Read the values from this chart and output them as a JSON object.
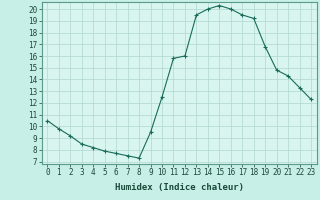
{
  "x": [
    0,
    1,
    2,
    3,
    4,
    5,
    6,
    7,
    8,
    9,
    10,
    11,
    12,
    13,
    14,
    15,
    16,
    17,
    18,
    19,
    20,
    21,
    22,
    23
  ],
  "y": [
    10.5,
    9.8,
    9.2,
    8.5,
    8.2,
    7.9,
    7.7,
    7.5,
    7.3,
    9.5,
    12.5,
    15.8,
    16.0,
    19.5,
    20.0,
    20.3,
    20.0,
    19.5,
    19.2,
    16.8,
    14.8,
    14.3,
    13.3,
    12.3
  ],
  "line_color": "#1a6b5a",
  "marker": "+",
  "marker_size": 3,
  "fig_bg": "#c8eee8",
  "axes_bg": "#d8f5f0",
  "grid_color": "#b0d8d0",
  "xlabel": "Humidex (Indice chaleur)",
  "yticks": [
    7,
    8,
    9,
    10,
    11,
    12,
    13,
    14,
    15,
    16,
    17,
    18,
    19,
    20
  ],
  "ylim": [
    6.8,
    20.6
  ],
  "xlim": [
    -0.5,
    23.5
  ],
  "xlabel_fontsize": 6.5,
  "tick_fontsize": 5.5
}
